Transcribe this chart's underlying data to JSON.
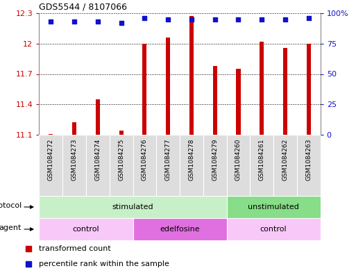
{
  "title": "GDS5544 / 8107066",
  "samples": [
    "GSM1084272",
    "GSM1084273",
    "GSM1084274",
    "GSM1084275",
    "GSM1084276",
    "GSM1084277",
    "GSM1084278",
    "GSM1084279",
    "GSM1084260",
    "GSM1084261",
    "GSM1084262",
    "GSM1084263"
  ],
  "transformed_count": [
    11.11,
    11.22,
    11.45,
    11.14,
    12.0,
    12.06,
    12.27,
    11.78,
    11.75,
    12.02,
    11.96,
    12.0
  ],
  "percentile_rank": [
    93,
    93,
    93,
    92,
    96,
    95,
    95,
    95,
    95,
    95,
    95,
    96
  ],
  "bar_color": "#cc0000",
  "dot_color": "#1111cc",
  "ylim_left": [
    11.1,
    12.3
  ],
  "ylim_right": [
    0,
    100
  ],
  "yticks_left": [
    11.1,
    11.4,
    11.7,
    12.0,
    12.3
  ],
  "yticks_right": [
    0,
    25,
    50,
    75,
    100
  ],
  "ytick_labels_left": [
    "11.1",
    "11.4",
    "11.7",
    "12",
    "12.3"
  ],
  "ytick_labels_right": [
    "0",
    "25",
    "50",
    "75",
    "100%"
  ],
  "protocol_groups": [
    {
      "label": "stimulated",
      "start": 0,
      "end": 7,
      "color": "#c8f0c8"
    },
    {
      "label": "unstimulated",
      "start": 8,
      "end": 11,
      "color": "#88dd88"
    }
  ],
  "agent_groups": [
    {
      "label": "control",
      "start": 0,
      "end": 3,
      "color": "#f8c8f8"
    },
    {
      "label": "edelfosine",
      "start": 4,
      "end": 7,
      "color": "#e070e0"
    },
    {
      "label": "control",
      "start": 8,
      "end": 11,
      "color": "#f8c8f8"
    }
  ],
  "legend_items": [
    {
      "label": "transformed count",
      "color": "#cc0000"
    },
    {
      "label": "percentile rank within the sample",
      "color": "#1111cc"
    }
  ],
  "bg_color": "#ffffff",
  "grid_color": "#000000",
  "left_tick_color": "#cc0000",
  "right_tick_color": "#1111cc",
  "xlabel_bg": "#dddddd",
  "bar_width": 0.18
}
